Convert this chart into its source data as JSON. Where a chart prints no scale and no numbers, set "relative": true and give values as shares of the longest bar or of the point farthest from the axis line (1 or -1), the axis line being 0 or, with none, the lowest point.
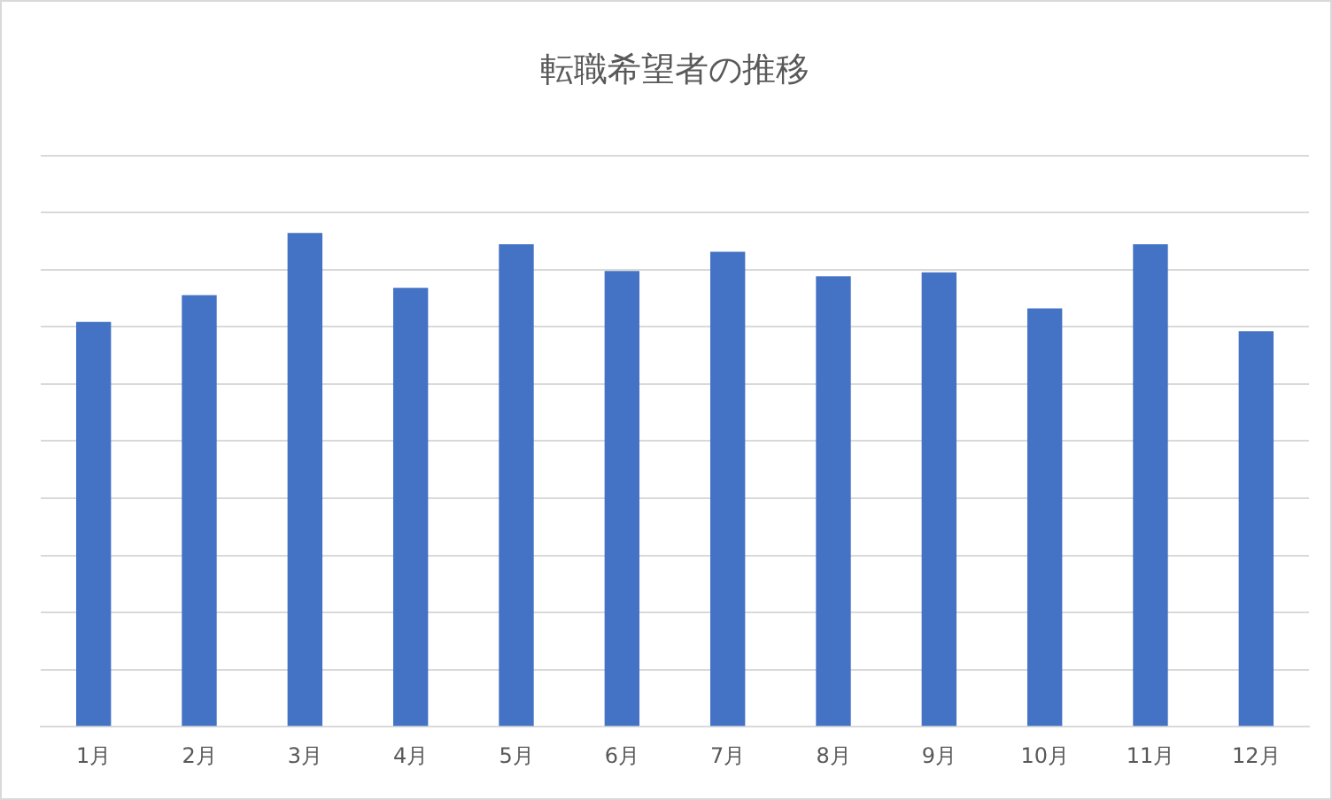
{
  "chart_data": {
    "type": "bar",
    "title": "転職希望者の推移",
    "relative": true,
    "grid": "y",
    "categories": [
      "1月",
      "2月",
      "3月",
      "4月",
      "5月",
      "6月",
      "7月",
      "8月",
      "9月",
      "10月",
      "11月",
      "12月"
    ],
    "values": [
      0.82,
      0.874,
      1,
      0.889,
      0.977,
      0.923,
      0.962,
      0.912,
      0.92,
      0.847,
      0.977,
      0.801
    ],
    "color": "#4472c4"
  }
}
